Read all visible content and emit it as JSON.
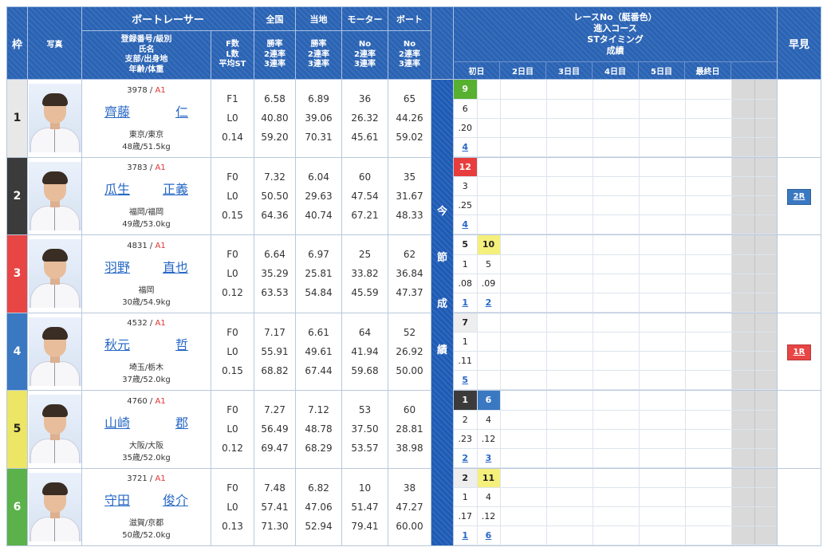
{
  "header": {
    "waku": "枠",
    "photo": "写真",
    "racer": "ボートレーサー",
    "racer_sub": [
      "登録番号/級別",
      "氏名",
      "支部/出身地",
      "年齢/体重"
    ],
    "fl": [
      "F数",
      "L数",
      "平均ST"
    ],
    "zenkoku": "全国",
    "touchi": "当地",
    "motor": "モーター",
    "boat": "ボート",
    "rate_sub": [
      "勝率",
      "2連率",
      "3連率"
    ],
    "no_sub": [
      "No",
      "2連率",
      "3連率"
    ],
    "race_info": [
      "レースNo（艇番色）",
      "進入コース",
      "STタイミング",
      "成績"
    ],
    "days": [
      "初日",
      "2日目",
      "3日目",
      "4日目",
      "5日目",
      "最終日"
    ],
    "hayami": "早見"
  },
  "konsetsu": [
    "今",
    "節",
    "成",
    "績"
  ],
  "colors": {
    "waku": [
      "#e8e8e8",
      "#3b3b3b",
      "#e84545",
      "#3a78c2",
      "#ece565",
      "#5bb14a"
    ],
    "waku_text": [
      "#222222",
      "#ffffff",
      "#ffffff",
      "#ffffff",
      "#222222",
      "#ffffff"
    ],
    "header_blue": "#2a63b4",
    "link": "#2768c5"
  },
  "racers": [
    {
      "waku": "1",
      "reg": "3978",
      "cls": "A1",
      "name": [
        "齊藤",
        "仁"
      ],
      "branch": "東京/東京",
      "age": "48歳/51.5kg",
      "f": "F1",
      "l": "L0",
      "st": "0.14",
      "zen": [
        "6.58",
        "40.80",
        "59.20"
      ],
      "tou": [
        "6.89",
        "39.06",
        "70.31"
      ],
      "mot": [
        "36",
        "26.32",
        "45.61"
      ],
      "bt": [
        "65",
        "44.26",
        "59.02"
      ],
      "results": [
        {
          "race": "9",
          "rc": "c-grn",
          "course": "6",
          "st": ".20",
          "rank": "4"
        }
      ],
      "hayami": ""
    },
    {
      "waku": "2",
      "reg": "3783",
      "cls": "A1",
      "name": [
        "瓜生",
        "正義"
      ],
      "branch": "福岡/福岡",
      "age": "49歳/53.0kg",
      "f": "F0",
      "l": "L0",
      "st": "0.15",
      "zen": [
        "7.32",
        "50.50",
        "64.36"
      ],
      "tou": [
        "6.04",
        "29.63",
        "40.74"
      ],
      "mot": [
        "60",
        "47.54",
        "67.21"
      ],
      "bt": [
        "35",
        "31.67",
        "48.33"
      ],
      "results": [
        {
          "race": "12",
          "rc": "c-red",
          "course": "3",
          "st": ".25",
          "rank": "4"
        }
      ],
      "hayami": "2R"
    },
    {
      "waku": "3",
      "reg": "4831",
      "cls": "A1",
      "name": [
        "羽野",
        "直也"
      ],
      "branch": "福岡",
      "age": "30歳/54.9kg",
      "f": "F0",
      "l": "L0",
      "st": "0.12",
      "zen": [
        "6.64",
        "35.29",
        "63.53"
      ],
      "tou": [
        "6.97",
        "25.81",
        "54.84"
      ],
      "mot": [
        "25",
        "33.82",
        "45.59"
      ],
      "bt": [
        "62",
        "36.84",
        "47.37"
      ],
      "results": [
        {
          "race": "5",
          "rc": "",
          "course": "1",
          "st": ".08",
          "rank": "1"
        },
        {
          "race": "10",
          "rc": "c-yel",
          "course": "5",
          "st": ".09",
          "rank": "2"
        }
      ],
      "hayami": ""
    },
    {
      "waku": "4",
      "reg": "4532",
      "cls": "A1",
      "name": [
        "秋元",
        "哲"
      ],
      "branch": "埼玉/栃木",
      "age": "37歳/52.0kg",
      "f": "F0",
      "l": "L0",
      "st": "0.15",
      "zen": [
        "7.17",
        "55.91",
        "68.82"
      ],
      "tou": [
        "6.61",
        "49.61",
        "67.44"
      ],
      "mot": [
        "64",
        "41.94",
        "59.68"
      ],
      "bt": [
        "52",
        "26.92",
        "50.00"
      ],
      "results": [
        {
          "race": "7",
          "rc": "c-gry",
          "course": "1",
          "st": ".11",
          "rank": "5"
        }
      ],
      "hayami": "1R"
    },
    {
      "waku": "5",
      "reg": "4760",
      "cls": "A1",
      "name": [
        "山崎",
        "郡"
      ],
      "branch": "大阪/大阪",
      "age": "35歳/52.0kg",
      "f": "F0",
      "l": "L0",
      "st": "0.12",
      "zen": [
        "7.27",
        "56.49",
        "69.47"
      ],
      "tou": [
        "7.12",
        "48.78",
        "68.29"
      ],
      "mot": [
        "53",
        "37.50",
        "53.57"
      ],
      "bt": [
        "60",
        "28.81",
        "38.98"
      ],
      "results": [
        {
          "race": "1",
          "rc": "c-dark",
          "course": "2",
          "st": ".23",
          "rank": "2"
        },
        {
          "race": "6",
          "rc": "c-blue",
          "course": "4",
          "st": ".12",
          "rank": "3"
        }
      ],
      "hayami": ""
    },
    {
      "waku": "6",
      "reg": "3721",
      "cls": "A1",
      "name": [
        "守田",
        "俊介"
      ],
      "branch": "滋賀/京都",
      "age": "50歳/52.0kg",
      "f": "F0",
      "l": "L0",
      "st": "0.13",
      "zen": [
        "7.48",
        "57.41",
        "71.30"
      ],
      "tou": [
        "6.82",
        "47.06",
        "52.94"
      ],
      "mot": [
        "10",
        "51.47",
        "79.41"
      ],
      "bt": [
        "38",
        "47.27",
        "60.00"
      ],
      "results": [
        {
          "race": "2",
          "rc": "c-gry",
          "course": "1",
          "st": ".17",
          "rank": "1"
        },
        {
          "race": "11",
          "rc": "c-yel",
          "course": "4",
          "st": ".12",
          "rank": "6"
        }
      ],
      "hayami": ""
    }
  ]
}
